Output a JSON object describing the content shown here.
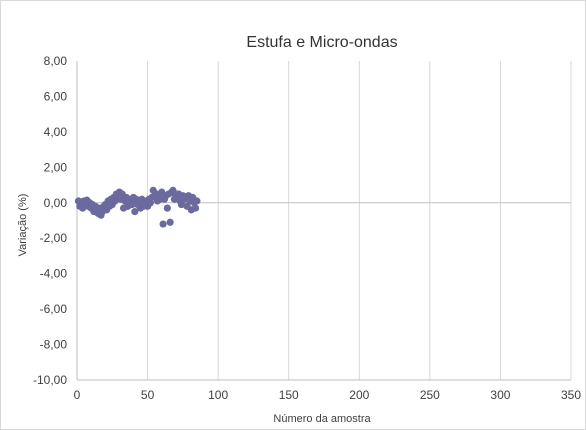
{
  "chart_data": {
    "type": "scatter",
    "title": "Estufa e Micro-ondas",
    "xlabel": "Número da amostra",
    "ylabel": "Variação (%)",
    "xlim": [
      0,
      350
    ],
    "ylim": [
      -10,
      8
    ],
    "x_ticks": [
      "0",
      "50",
      "100",
      "150",
      "200",
      "250",
      "300",
      "350"
    ],
    "y_ticks": [
      "8,00",
      "6,00",
      "4,00",
      "2,00",
      "0,00",
      "-2,00",
      "-4,00",
      "-6,00",
      "-8,00",
      "-10,00"
    ],
    "grid": "vertical",
    "legend": "none",
    "marker_color": "#6a6a9e",
    "series": [
      {
        "x": [
          1,
          2,
          3,
          4,
          5,
          6,
          7,
          8,
          9,
          10,
          11,
          12,
          13,
          14,
          15,
          16,
          17,
          18,
          19,
          20,
          21,
          22,
          23,
          24,
          25,
          26,
          27,
          28,
          29,
          30,
          31,
          32,
          33,
          34,
          35,
          36,
          37,
          38,
          39,
          40,
          41,
          42,
          43,
          44,
          45,
          46,
          47,
          48,
          49,
          50,
          51,
          52,
          53,
          54,
          55,
          56,
          57,
          58,
          59,
          60,
          61,
          62,
          63,
          64,
          65,
          66,
          67,
          68,
          69,
          70,
          71,
          72,
          73,
          74,
          75,
          76,
          77,
          78,
          79,
          80,
          81,
          82,
          83,
          84,
          85
        ],
        "y": [
          0.1,
          -0.2,
          0.05,
          -0.3,
          0.1,
          -0.1,
          0.15,
          -0.2,
          0.0,
          -0.3,
          -0.1,
          -0.5,
          -0.2,
          -0.4,
          -0.6,
          -0.3,
          -0.7,
          -0.5,
          -0.2,
          -0.1,
          -0.4,
          0.1,
          -0.2,
          0.2,
          -0.1,
          0.3,
          0.1,
          0.5,
          0.3,
          0.6,
          0.2,
          0.5,
          -0.3,
          0.1,
          0.3,
          -0.2,
          0.1,
          0.2,
          -0.1,
          0.3,
          -0.5,
          0.2,
          -0.1,
          0.1,
          -0.3,
          0.2,
          -0.2,
          -0.1,
          0.1,
          -0.2,
          0.2,
          0.0,
          0.3,
          0.7,
          0.4,
          0.5,
          0.1,
          0.3,
          0.2,
          0.6,
          -1.2,
          0.2,
          0.4,
          -0.3,
          0.5,
          -1.1,
          0.6,
          0.7,
          0.2,
          0.4,
          0.3,
          0.5,
          0.1,
          -0.1,
          0.4,
          0.2,
          0.3,
          -0.2,
          0.4,
          0.1,
          -0.4,
          0.3,
          0.0,
          -0.3,
          0.1
        ]
      }
    ]
  }
}
